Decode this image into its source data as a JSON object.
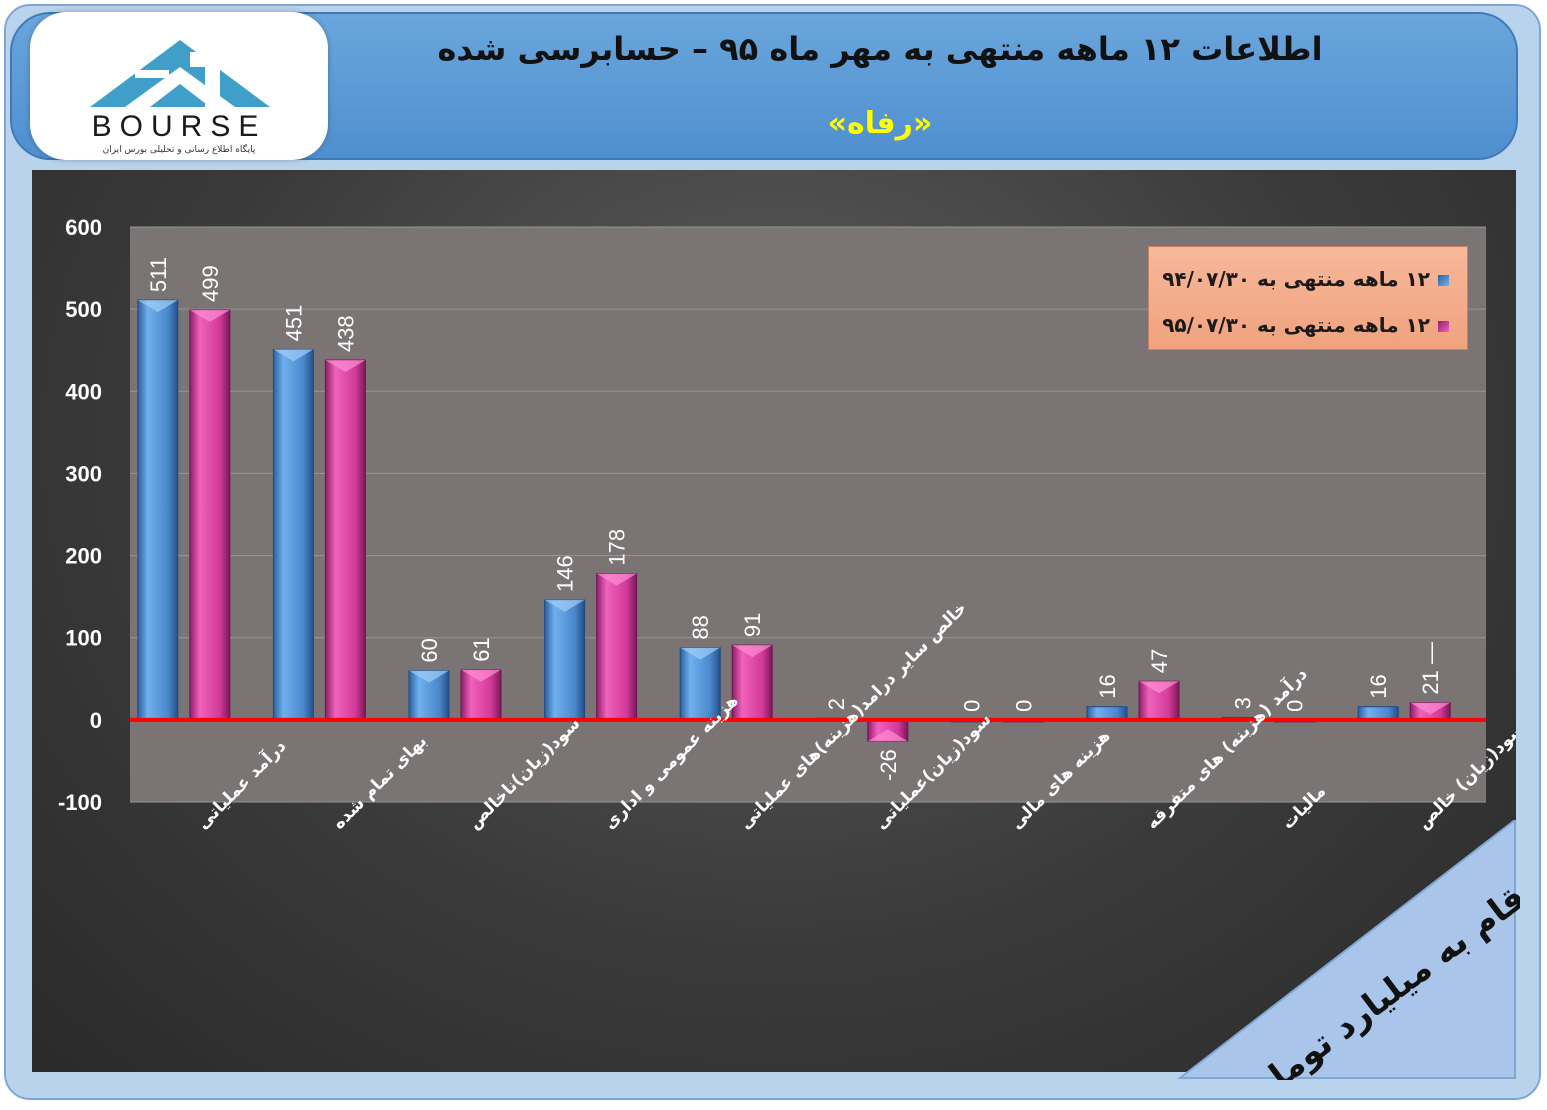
{
  "header": {
    "title": "اطلاعات ۱۲ ماهه منتهی به مهر ماه ۹۵ – حسابرسی شده",
    "subtitle": "«رفاه»"
  },
  "logo": {
    "brand": "BOURSE",
    "tagline": "پایگاه اطلاع رسانی و تحلیلی بورس ایران"
  },
  "unit_note": "ارقام به میلیارد تومان",
  "colors": {
    "series1": "#4d8fd6",
    "series2": "#d63a9c",
    "zero_line": "#ff0000",
    "legend_bg": "#f4ae8c"
  },
  "chart_data": {
    "type": "bar",
    "categories": [
      "درآمد عملیاتی",
      "بهای تمام شده",
      "سود(زیان)ناخالص",
      "هزینه عمومی و اداری",
      "خالص سایر درامد(هزینه)های عملیاتی",
      "سود(زیان)عملیاتی",
      "هزینه های مالی",
      "درآمد (هزینه) های متفرقه",
      "مالیات",
      "سود(زیان) خالص"
    ],
    "series": [
      {
        "name": "۱۲ ماهه منتهی به ۹۴/۰۷/۳۰",
        "values": [
          511,
          451,
          60,
          146,
          88,
          2,
          0,
          16,
          3,
          16
        ],
        "labels": [
          "511",
          "451",
          "60",
          "146",
          "88",
          "2",
          "0",
          "16",
          "3",
          "16"
        ]
      },
      {
        "name": "۱۲ ماهه منتهی به ۹۵/۰۷/۳۰",
        "values": [
          499,
          438,
          61,
          178,
          91,
          -26,
          0,
          47,
          0,
          21
        ],
        "labels": [
          "499",
          "438",
          "61",
          "178",
          "91",
          "-26",
          "0",
          "47",
          "0",
          "21 —"
        ]
      }
    ],
    "yticks": [
      "600",
      "500",
      "400",
      "300",
      "200",
      "100",
      "0",
      "-100"
    ],
    "ylim": [
      -100,
      600
    ],
    "grid": true,
    "legend_position": "top-right"
  }
}
